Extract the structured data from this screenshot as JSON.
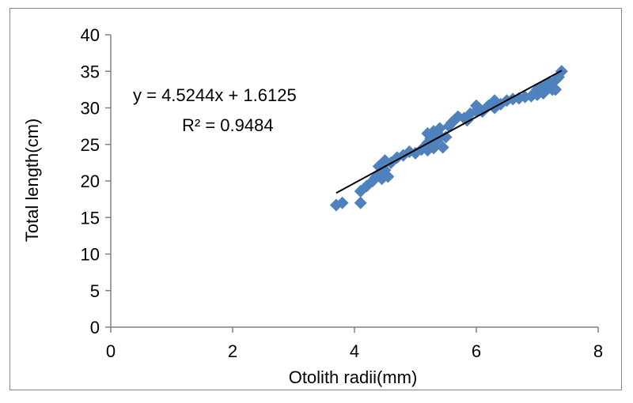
{
  "chart_data": {
    "type": "scatter",
    "title": "",
    "xlabel": "Otolith radii(mm)",
    "ylabel": "Total length(cm)",
    "xlim": [
      0,
      8
    ],
    "ylim": [
      0,
      40
    ],
    "x_ticks": [
      0,
      2,
      4,
      6,
      8
    ],
    "y_ticks": [
      0,
      5,
      10,
      15,
      20,
      25,
      30,
      35,
      40
    ],
    "grid": false,
    "legend": "none",
    "marker": "diamond",
    "marker_color": "#4F81BD",
    "trendline_color": "#000000",
    "equation": "y = 4.5244x + 1.6125",
    "r_squared": "R² = 0.9484",
    "trendline": {
      "slope": 4.5244,
      "intercept": 1.6125,
      "x_start": 3.7,
      "x_end": 7.4
    },
    "points": [
      [
        3.7,
        16.7
      ],
      [
        3.8,
        17.0
      ],
      [
        4.1,
        17.0
      ],
      [
        4.1,
        18.6
      ],
      [
        4.2,
        19.3
      ],
      [
        4.3,
        20.0
      ],
      [
        4.35,
        20.5
      ],
      [
        4.4,
        21.0
      ],
      [
        4.4,
        22.0
      ],
      [
        4.45,
        20.3
      ],
      [
        4.5,
        21.5
      ],
      [
        4.5,
        22.8
      ],
      [
        4.55,
        20.6
      ],
      [
        4.6,
        22.5
      ],
      [
        4.7,
        23.2
      ],
      [
        4.8,
        23.5
      ],
      [
        4.9,
        24.0
      ],
      [
        5.0,
        23.8
      ],
      [
        5.1,
        24.3
      ],
      [
        5.2,
        24.2
      ],
      [
        5.2,
        25.2
      ],
      [
        5.2,
        26.5
      ],
      [
        5.25,
        25.8
      ],
      [
        5.3,
        24.5
      ],
      [
        5.3,
        26.8
      ],
      [
        5.35,
        25.5
      ],
      [
        5.4,
        26.2
      ],
      [
        5.4,
        27.2
      ],
      [
        5.45,
        24.6
      ],
      [
        5.5,
        26.0
      ],
      [
        5.55,
        27.5
      ],
      [
        5.6,
        28.0
      ],
      [
        5.65,
        28.4
      ],
      [
        5.7,
        28.8
      ],
      [
        5.8,
        28.6
      ],
      [
        5.85,
        28.3
      ],
      [
        5.9,
        29.2
      ],
      [
        6.0,
        29.6
      ],
      [
        6.0,
        30.3
      ],
      [
        6.05,
        29.9
      ],
      [
        6.1,
        29.5
      ],
      [
        6.2,
        30.3
      ],
      [
        6.3,
        30.0
      ],
      [
        6.3,
        31.0
      ],
      [
        6.4,
        30.5
      ],
      [
        6.5,
        31.0
      ],
      [
        6.6,
        31.2
      ],
      [
        6.7,
        31.3
      ],
      [
        6.8,
        31.5
      ],
      [
        6.9,
        31.6
      ],
      [
        7.0,
        31.8
      ],
      [
        7.0,
        32.5
      ],
      [
        7.1,
        32.0
      ],
      [
        7.1,
        33.0
      ],
      [
        7.2,
        32.8
      ],
      [
        7.2,
        33.5
      ],
      [
        7.25,
        32.5
      ],
      [
        7.3,
        33.8
      ],
      [
        7.3,
        32.5
      ],
      [
        7.35,
        34.2
      ],
      [
        7.4,
        35.0
      ]
    ]
  }
}
